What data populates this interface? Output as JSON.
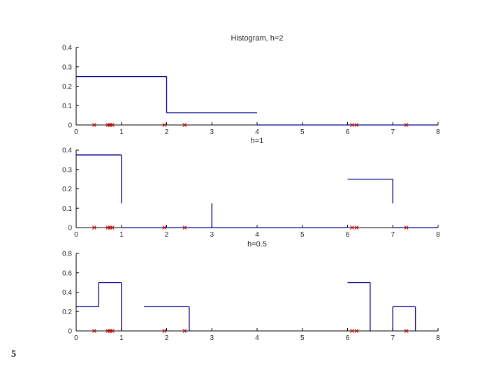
{
  "slide_number": "5",
  "chart_data": [
    {
      "type": "histogram",
      "title": "Histogram, h=2",
      "xlim": [
        0,
        8
      ],
      "ylim": [
        0,
        0.4
      ],
      "xticks": [
        "0",
        "1",
        "2",
        "3",
        "4",
        "5",
        "6",
        "7",
        "8"
      ],
      "yticks": [
        "0",
        "0.1",
        "0.2",
        "0.3",
        "0.4"
      ],
      "bins": [
        {
          "x0": 0,
          "x1": 2,
          "height": 0.25
        },
        {
          "x0": 2,
          "x1": 4,
          "height": 0.0625
        },
        {
          "x0": 4,
          "x1": 6,
          "height": 0
        },
        {
          "x0": 6,
          "x1": 8,
          "height": 0
        }
      ],
      "samples": [
        0.4,
        0.7,
        0.75,
        0.8,
        1.95,
        2.4,
        6.1,
        6.2,
        7.3
      ],
      "line_color": "#00008b",
      "marker_color": "#cc0000"
    },
    {
      "type": "histogram",
      "title": "h=1",
      "xlim": [
        0,
        8
      ],
      "ylim": [
        0,
        0.4
      ],
      "xticks": [
        "0",
        "1",
        "2",
        "3",
        "4",
        "5",
        "6",
        "7",
        "8"
      ],
      "yticks": [
        "0",
        "0.1",
        "0.2",
        "0.3",
        "0.4"
      ],
      "bins": [
        {
          "x0": 0,
          "x1": 1,
          "height": 0.375
        },
        {
          "x0": 1,
          "x1": 2,
          "height": 0
        },
        {
          "x0": 2,
          "x1": 3,
          "height": 0
        },
        {
          "x0": 3,
          "x1": 6,
          "height": 0
        },
        {
          "x0": 6,
          "x1": 7,
          "height": 0.25
        },
        {
          "x0": 7,
          "x1": 8,
          "height": 0
        }
      ],
      "extra_segments": [
        {
          "x": 1,
          "y0": 0.125,
          "y1": 0.375
        },
        {
          "x": 3,
          "y0": 0,
          "y1": 0.125
        },
        {
          "x": 7,
          "y0": 0.125,
          "y1": 0.25
        }
      ],
      "samples": [
        0.4,
        0.7,
        0.75,
        0.8,
        1.95,
        2.4,
        6.1,
        6.2,
        7.3
      ],
      "line_color": "#00008b",
      "marker_color": "#cc0000"
    },
    {
      "type": "histogram",
      "title": "h=0.5",
      "xlim": [
        0,
        8
      ],
      "ylim": [
        0,
        0.8
      ],
      "xticks": [
        "0",
        "1",
        "2",
        "3",
        "4",
        "5",
        "6",
        "7",
        "8"
      ],
      "yticks": [
        "0",
        "0.2",
        "0.4",
        "0.6",
        "0.8"
      ],
      "bins": [
        {
          "x0": 0,
          "x1": 0.5,
          "height": 0.25
        },
        {
          "x0": 0.5,
          "x1": 1,
          "height": 0.5
        },
        {
          "x0": 1.5,
          "x1": 2.5,
          "height": 0.25
        },
        {
          "x0": 6,
          "x1": 6.5,
          "height": 0.5
        },
        {
          "x0": 7,
          "x1": 7.5,
          "height": 0.25
        }
      ],
      "extra_segments": [
        {
          "x": 1,
          "y0": 0,
          "y1": 0.5
        },
        {
          "x": 2.5,
          "y0": 0,
          "y1": 0.25
        },
        {
          "x": 6.5,
          "y0": 0,
          "y1": 0.5
        },
        {
          "x": 7,
          "y0": 0,
          "y1": 0.25
        },
        {
          "x": 7.5,
          "y0": 0,
          "y1": 0.25
        }
      ],
      "samples": [
        0.4,
        0.7,
        0.75,
        0.8,
        1.95,
        2.4,
        6.1,
        6.2,
        7.3
      ],
      "line_color": "#00008b",
      "marker_color": "#cc0000"
    }
  ]
}
